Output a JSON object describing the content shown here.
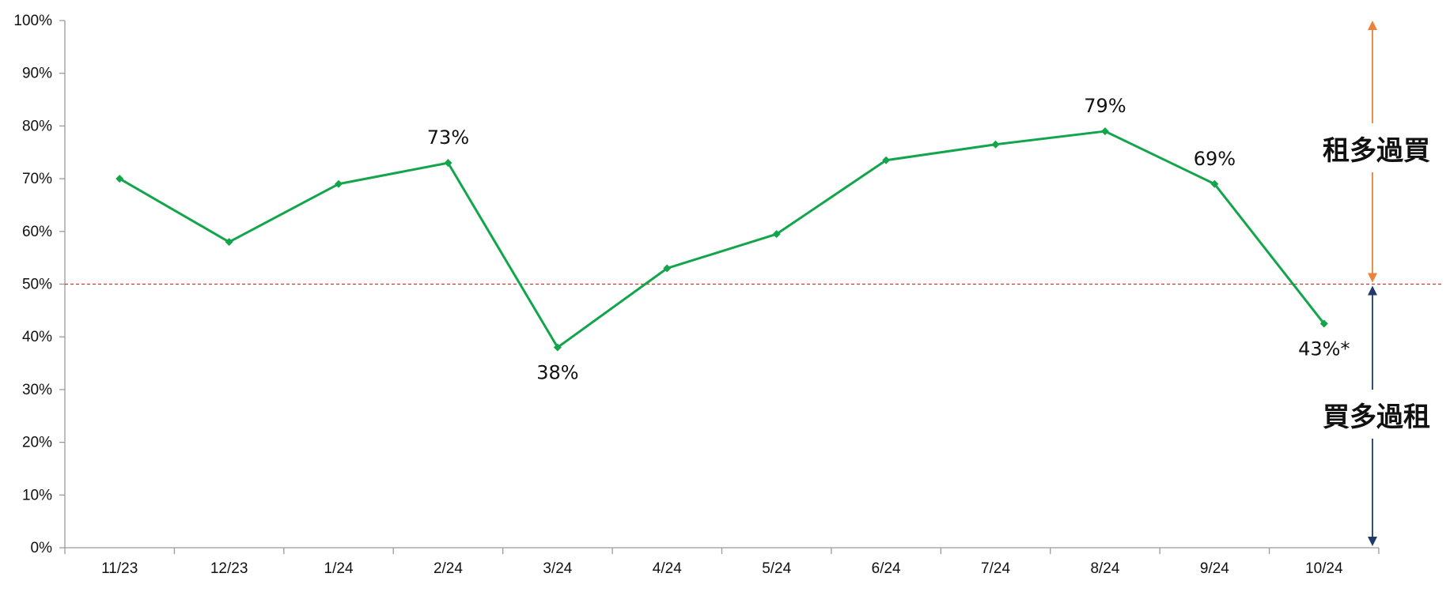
{
  "chart_data": {
    "type": "line",
    "categories": [
      "11/23",
      "12/23",
      "1/24",
      "2/24",
      "3/24",
      "4/24",
      "5/24",
      "6/24",
      "7/24",
      "8/24",
      "9/24",
      "10/24"
    ],
    "series": [
      {
        "values": [
          70,
          58,
          69,
          73,
          38,
          53,
          59.5,
          73.5,
          76.5,
          79,
          69,
          42.5
        ],
        "color": "#12a54b",
        "marker": "diamond"
      }
    ],
    "data_labels": [
      {
        "index": 3,
        "text": "73%",
        "position": "above"
      },
      {
        "index": 4,
        "text": "38%",
        "position": "below"
      },
      {
        "index": 9,
        "text": "79%",
        "position": "above"
      },
      {
        "index": 10,
        "text": "69%",
        "position": "above"
      },
      {
        "index": 11,
        "text": "43%*",
        "position": "below"
      }
    ],
    "y_ticks": [
      "0%",
      "10%",
      "20%",
      "30%",
      "40%",
      "50%",
      "60%",
      "70%",
      "80%",
      "90%",
      "100%"
    ],
    "ylim": [
      0,
      100
    ],
    "grid": false,
    "reference_line": {
      "value": 50,
      "style": "dashed",
      "color": "#c0392b"
    },
    "zones": {
      "upper": {
        "label": "租多過買",
        "range": [
          50,
          100
        ],
        "arrow_color": "#e8843a"
      },
      "lower": {
        "label": "買多過租",
        "range": [
          0,
          50
        ],
        "arrow_color": "#1f3a68"
      }
    },
    "axis_color": "#9a9a9a"
  }
}
